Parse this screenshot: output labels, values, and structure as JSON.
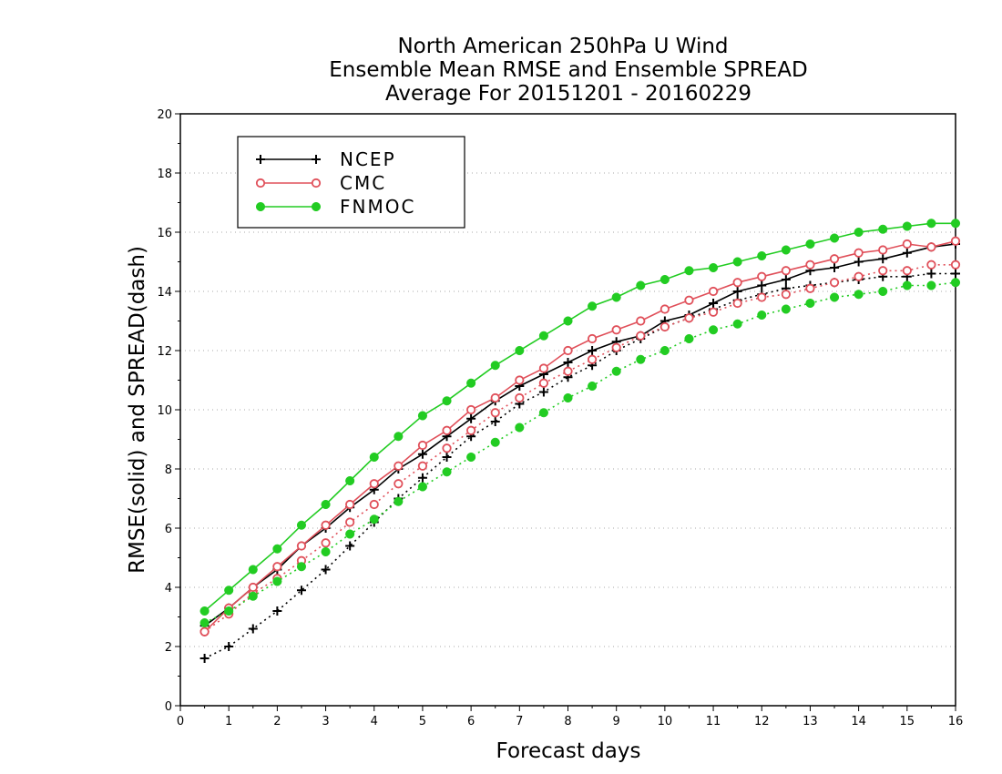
{
  "chart_data": {
    "type": "line",
    "title": "North American 250hPa U Wind",
    "subtitle": "Ensemble Mean RMSE and Ensemble SPREAD",
    "subtitle2": "Average For 20151201 - 20160229",
    "xlabel": "Forecast days",
    "ylabel": "RMSE(solid) and SPREAD(dash)",
    "xlim": [
      0,
      16
    ],
    "ylim": [
      0,
      20
    ],
    "xticks": [
      0,
      1,
      2,
      3,
      4,
      5,
      6,
      7,
      8,
      9,
      10,
      11,
      12,
      13,
      14,
      15,
      16
    ],
    "yticks": [
      0,
      2,
      4,
      6,
      8,
      10,
      12,
      14,
      16,
      18,
      20
    ],
    "grid": true,
    "legend_position": "top-left",
    "x": [
      0.5,
      1,
      1.5,
      2,
      2.5,
      3,
      3.5,
      4,
      4.5,
      5,
      5.5,
      6,
      6.5,
      7,
      7.5,
      8,
      8.5,
      9,
      9.5,
      10,
      10.5,
      11,
      11.5,
      12,
      12.5,
      13,
      13.5,
      14,
      14.5,
      15,
      15.5,
      16
    ],
    "series": [
      {
        "name": "NCEP",
        "color": "#000000",
        "marker": "plus",
        "rmse": [
          2.7,
          3.3,
          4.0,
          4.6,
          5.4,
          6.0,
          6.7,
          7.3,
          8.0,
          8.5,
          9.1,
          9.7,
          10.3,
          10.8,
          11.2,
          11.6,
          12.0,
          12.3,
          12.5,
          13.0,
          13.2,
          13.6,
          14.0,
          14.2,
          14.4,
          14.7,
          14.8,
          15.0,
          15.1,
          15.3,
          15.5,
          15.6
        ],
        "spread": [
          1.6,
          2.0,
          2.6,
          3.2,
          3.9,
          4.6,
          5.4,
          6.2,
          7.0,
          7.7,
          8.4,
          9.1,
          9.6,
          10.2,
          10.6,
          11.1,
          11.5,
          12.0,
          12.4,
          12.8,
          13.1,
          13.4,
          13.7,
          13.9,
          14.1,
          14.2,
          14.3,
          14.4,
          14.5,
          14.5,
          14.6,
          14.6
        ]
      },
      {
        "name": "CMC",
        "color": "#e0505a",
        "marker": "open-circle",
        "rmse": [
          2.5,
          3.3,
          4.0,
          4.7,
          5.4,
          6.1,
          6.8,
          7.5,
          8.1,
          8.8,
          9.3,
          10.0,
          10.4,
          11.0,
          11.4,
          12.0,
          12.4,
          12.7,
          13.0,
          13.4,
          13.7,
          14.0,
          14.3,
          14.5,
          14.7,
          14.9,
          15.1,
          15.3,
          15.4,
          15.6,
          15.5,
          15.7
        ],
        "spread": [
          2.5,
          3.1,
          3.8,
          4.3,
          4.9,
          5.5,
          6.2,
          6.8,
          7.5,
          8.1,
          8.7,
          9.3,
          9.9,
          10.4,
          10.9,
          11.3,
          11.7,
          12.1,
          12.5,
          12.8,
          13.1,
          13.3,
          13.6,
          13.8,
          13.9,
          14.1,
          14.3,
          14.5,
          14.7,
          14.7,
          14.9,
          14.9
        ]
      },
      {
        "name": "FNMOC",
        "color": "#22cc22",
        "marker": "filled-circle",
        "rmse": [
          3.2,
          3.9,
          4.6,
          5.3,
          6.1,
          6.8,
          7.6,
          8.4,
          9.1,
          9.8,
          10.3,
          10.9,
          11.5,
          12.0,
          12.5,
          13.0,
          13.5,
          13.8,
          14.2,
          14.4,
          14.7,
          14.8,
          15.0,
          15.2,
          15.4,
          15.6,
          15.8,
          16.0,
          16.1,
          16.2,
          16.3,
          16.3
        ],
        "spread": [
          2.8,
          3.2,
          3.7,
          4.2,
          4.7,
          5.2,
          5.8,
          6.3,
          6.9,
          7.4,
          7.9,
          8.4,
          8.9,
          9.4,
          9.9,
          10.4,
          10.8,
          11.3,
          11.7,
          12.0,
          12.4,
          12.7,
          12.9,
          13.2,
          13.4,
          13.6,
          13.8,
          13.9,
          14.0,
          14.2,
          14.2,
          14.3
        ]
      }
    ]
  }
}
